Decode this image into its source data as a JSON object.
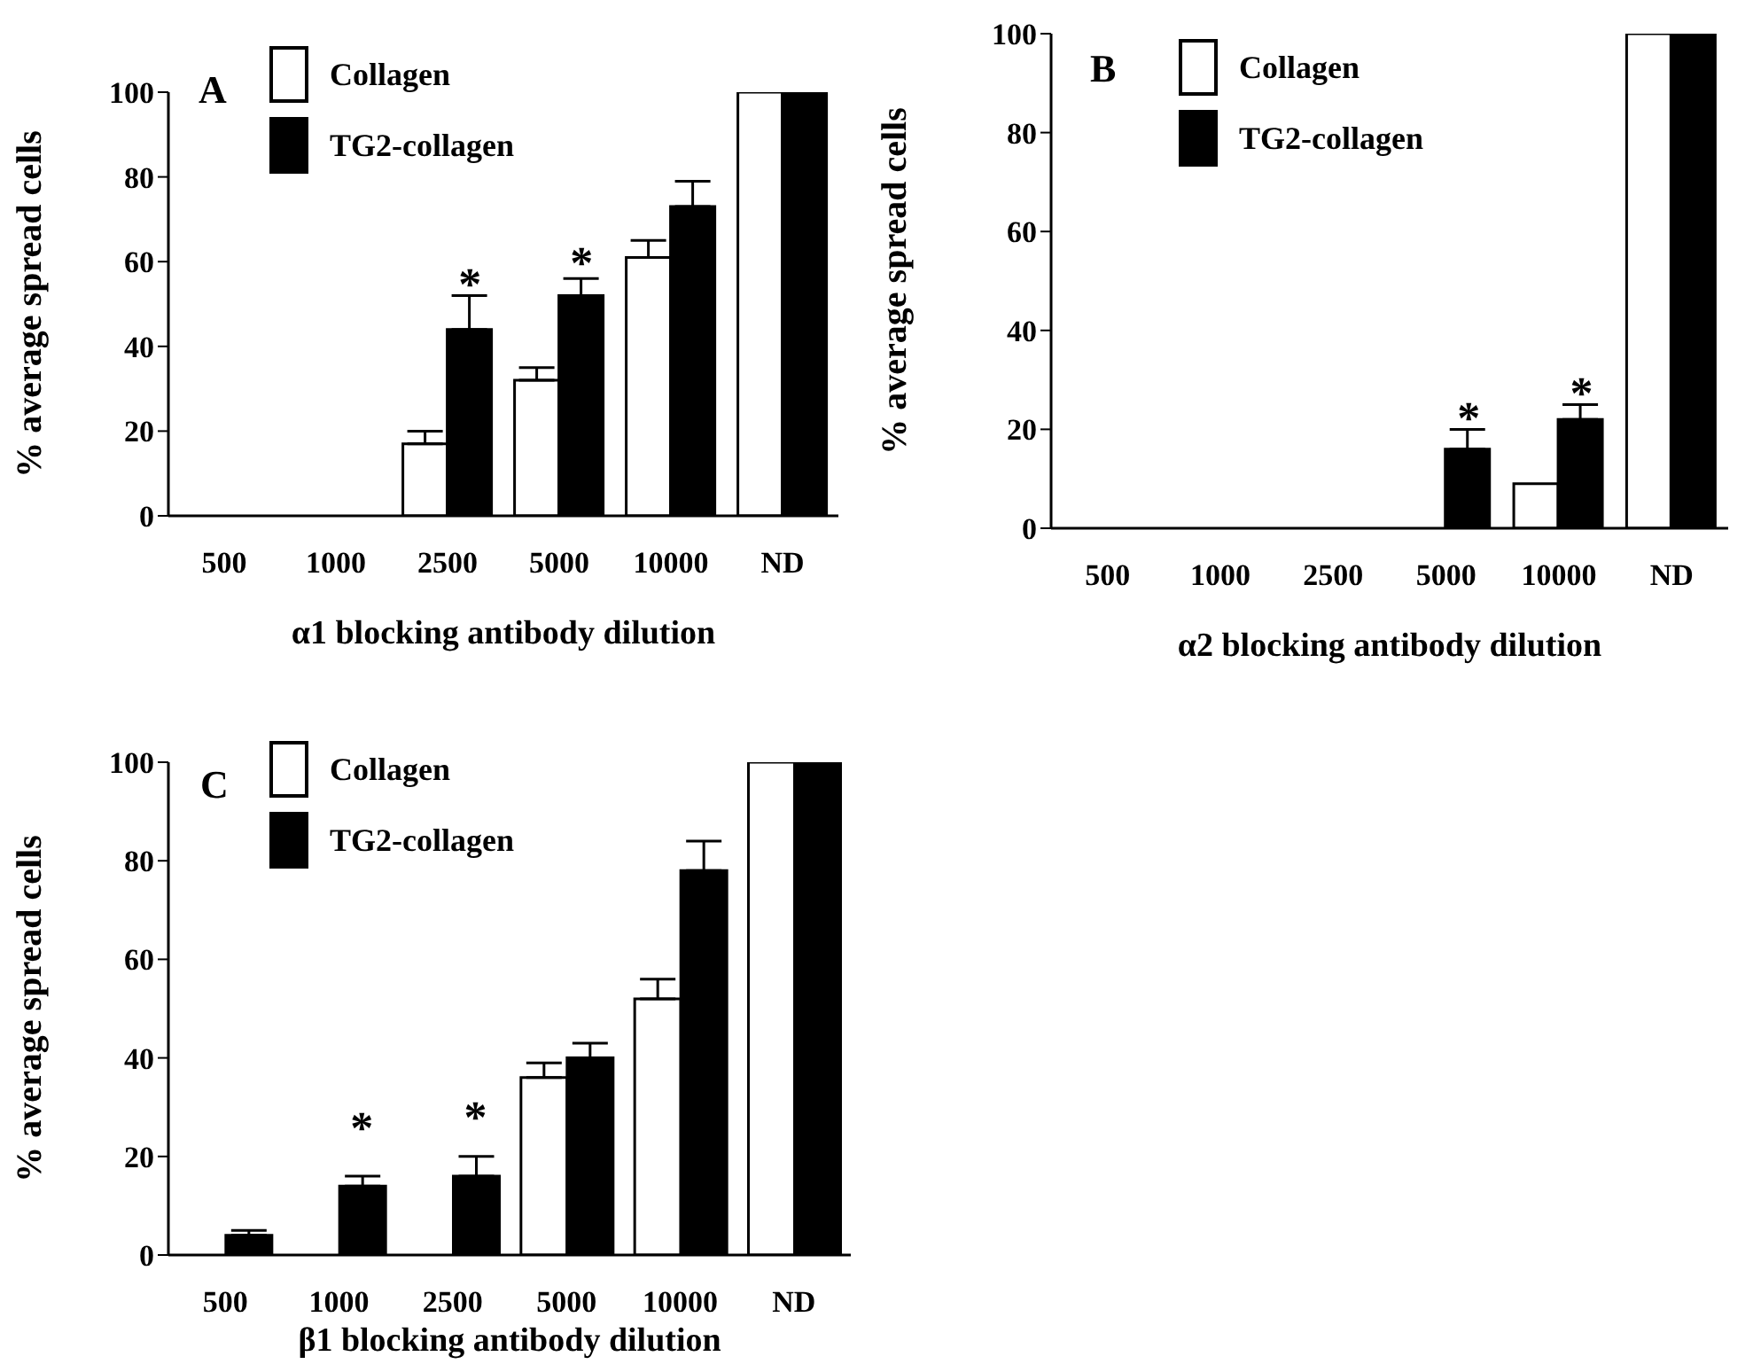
{
  "chart_data": [
    {
      "type": "bar",
      "title": "A",
      "xlabel": "α1 blocking antibody dilution",
      "ylabel": "% average spread cells",
      "categories": [
        "500",
        "1000",
        "2500",
        "5000",
        "10000",
        "ND"
      ],
      "series": [
        {
          "name": "Collagen",
          "color": "#ffffff",
          "values": [
            0,
            0,
            17,
            32,
            61,
            100
          ],
          "errors": [
            null,
            null,
            [
              17,
              20
            ],
            [
              32,
              35
            ],
            [
              61,
              65
            ],
            null
          ]
        },
        {
          "name": "TG2-collagen",
          "color": "#000000",
          "values": [
            0,
            0,
            44,
            52,
            73,
            100
          ],
          "errors": [
            null,
            null,
            [
              44,
              52
            ],
            [
              52,
              56
            ],
            [
              73,
              79
            ],
            null
          ]
        }
      ],
      "ylim": [
        0,
        100
      ],
      "yticks": [
        0,
        20,
        40,
        60,
        80,
        100
      ],
      "grid": false,
      "legend": "top left",
      "annotations": [
        "*",
        "*"
      ]
    },
    {
      "type": "bar",
      "title": "B",
      "xlabel": "α2 blocking antibody dilution",
      "ylabel": "% average spread cells",
      "categories": [
        "500",
        "1000",
        "2500",
        "5000",
        "10000",
        "ND"
      ],
      "series": [
        {
          "name": "Collagen",
          "color": "#ffffff",
          "values": [
            0,
            0,
            0,
            0,
            9,
            100
          ],
          "errors": [
            null,
            null,
            null,
            null,
            null,
            null
          ]
        },
        {
          "name": "TG2-collagen",
          "color": "#000000",
          "values": [
            0,
            0,
            0,
            16,
            22,
            100
          ],
          "errors": [
            null,
            null,
            null,
            [
              16,
              20
            ],
            [
              22,
              25
            ],
            null
          ]
        }
      ],
      "ylim": [
        0,
        100
      ],
      "yticks": [
        0,
        20,
        40,
        60,
        80,
        100
      ],
      "grid": false,
      "legend": "top left",
      "annotations": [
        "*",
        "*"
      ]
    },
    {
      "type": "bar",
      "title": "C",
      "xlabel": "β1 blocking antibody dilution",
      "ylabel": "% average spread cells",
      "categories": [
        "500",
        "1000",
        "2500",
        "5000",
        "10000",
        "ND"
      ],
      "series": [
        {
          "name": "Collagen",
          "color": "#ffffff",
          "values": [
            0,
            0,
            0,
            36,
            52,
            100
          ],
          "errors": [
            null,
            null,
            null,
            [
              36,
              39
            ],
            [
              52,
              56
            ],
            null
          ]
        },
        {
          "name": "TG2-collagen",
          "color": "#000000",
          "values": [
            4,
            14,
            16,
            40,
            78,
            100
          ],
          "errors": [
            [
              4,
              5
            ],
            [
              14,
              16
            ],
            [
              16,
              20
            ],
            [
              40,
              43
            ],
            [
              78,
              84
            ],
            null
          ]
        }
      ],
      "ylim": [
        0,
        100
      ],
      "yticks": [
        0,
        20,
        40,
        60,
        80,
        100
      ],
      "grid": false,
      "legend": "top left",
      "annotations": [
        "*",
        "*"
      ]
    }
  ]
}
